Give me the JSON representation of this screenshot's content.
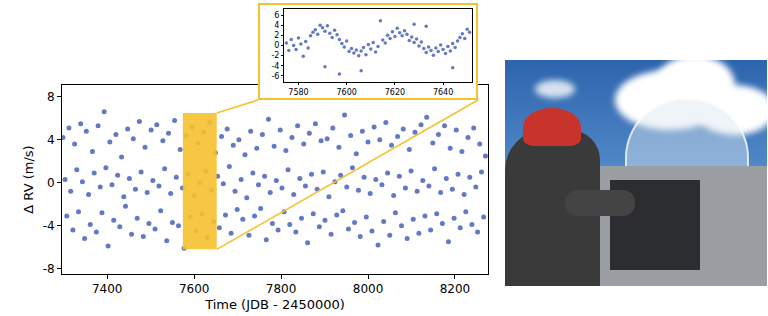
{
  "chart_data": [
    {
      "type": "scatter",
      "xlabel": "Time (JDB - 2450000)",
      "ylabel": "Δ RV (m/s)",
      "color": "#6479c6",
      "marker": "circle",
      "grid": false,
      "xlim": [
        7296,
        8276
      ],
      "ylim": [
        -8.5,
        9.1
      ],
      "xticks": [
        7400,
        7600,
        7800,
        8000,
        8200
      ],
      "yticks": [
        -8,
        -4,
        0,
        4,
        8
      ],
      "highlight": {
        "x": [
          7574,
          7652
        ],
        "y": [
          -6.2,
          6.5
        ],
        "color": "#f5c12e"
      },
      "x": [
        7298,
        7303,
        7307,
        7312,
        7316,
        7321,
        7325,
        7330,
        7334,
        7339,
        7343,
        7348,
        7352,
        7357,
        7361,
        7366,
        7370,
        7375,
        7379,
        7384,
        7388,
        7393,
        7397,
        7402,
        7406,
        7411,
        7415,
        7420,
        7424,
        7429,
        7433,
        7438,
        7442,
        7447,
        7451,
        7456,
        7460,
        7465,
        7469,
        7474,
        7478,
        7483,
        7487,
        7492,
        7496,
        7501,
        7505,
        7510,
        7514,
        7519,
        7523,
        7528,
        7532,
        7537,
        7541,
        7546,
        7550,
        7555,
        7559,
        7564,
        7568,
        7573,
        7577,
        7582,
        7586,
        7591,
        7595,
        7600,
        7604,
        7609,
        7613,
        7618,
        7622,
        7627,
        7631,
        7636,
        7640,
        7645,
        7649,
        7654,
        7658,
        7663,
        7667,
        7672,
        7676,
        7681,
        7685,
        7690,
        7694,
        7699,
        7703,
        7708,
        7712,
        7717,
        7721,
        7726,
        7730,
        7735,
        7739,
        7744,
        7748,
        7753,
        7757,
        7762,
        7766,
        7771,
        7775,
        7780,
        7784,
        7789,
        7793,
        7798,
        7802,
        7807,
        7811,
        7816,
        7820,
        7825,
        7829,
        7834,
        7838,
        7843,
        7847,
        7852,
        7856,
        7861,
        7865,
        7870,
        7874,
        7879,
        7883,
        7888,
        7892,
        7897,
        7901,
        7906,
        7910,
        7915,
        7919,
        7924,
        7928,
        7933,
        7937,
        7942,
        7946,
        7951,
        7955,
        7960,
        7964,
        7969,
        7973,
        7978,
        7982,
        7987,
        7991,
        7996,
        8000,
        8005,
        8009,
        8014,
        8018,
        8023,
        8027,
        8032,
        8036,
        8041,
        8045,
        8050,
        8054,
        8059,
        8063,
        8068,
        8072,
        8077,
        8081,
        8086,
        8090,
        8095,
        8099,
        8104,
        8108,
        8113,
        8117,
        8122,
        8126,
        8131,
        8135,
        8140,
        8144,
        8149,
        8153,
        8158,
        8162,
        8167,
        8171,
        8176,
        8180,
        8185,
        8189,
        8194,
        8198,
        8203,
        8207,
        8212,
        8216,
        8221,
        8225,
        8230,
        8234,
        8239,
        8243,
        8248,
        8252,
        8257,
        8261,
        8266,
        8270
      ],
      "values": [
        4.2,
        0.3,
        -3.1,
        5.1,
        -0.8,
        -4.4,
        3.6,
        1.2,
        -2.7,
        5.5,
        0.1,
        -5.2,
        4.8,
        -1.1,
        -3.9,
        2.9,
        0.9,
        -4.6,
        5.3,
        -0.4,
        -2.8,
        6.6,
        1.4,
        -5.9,
        3.8,
        -0.2,
        -3.5,
        4.5,
        0.7,
        -4.1,
        2.4,
        -1.3,
        -2.2,
        5.0,
        0.4,
        -4.8,
        4.1,
        -0.6,
        -3.3,
        5.7,
        1.0,
        -5.0,
        3.3,
        -0.9,
        -3.8,
        4.9,
        0.2,
        -4.3,
        5.4,
        -0.3,
        -2.6,
        3.9,
        1.3,
        -5.4,
        4.6,
        -1.0,
        -3.7,
        5.8,
        0.5,
        -4.0,
        3.1,
        -0.5,
        -6.1,
        4.4,
        0.8,
        -3.2,
        5.2,
        -1.2,
        -4.5,
        3.7,
        0.0,
        -2.9,
        4.7,
        1.1,
        -5.1,
        5.6,
        -0.7,
        -3.6,
        2.8,
        0.6,
        -4.2,
        4.3,
        -0.1,
        -3.0,
        5.0,
        1.5,
        -4.7,
        3.5,
        -0.8,
        -2.5,
        4.0,
        0.3,
        -3.4,
        2.6,
        -1.4,
        -4.9,
        4.8,
        0.9,
        -3.1,
        3.2,
        -0.2,
        -2.4,
        4.5,
        0.6,
        -5.3,
        5.9,
        -0.9,
        -3.8,
        3.4,
        0.2,
        -4.4,
        4.9,
        -0.5,
        -2.7,
        3.0,
        1.2,
        -3.9,
        4.2,
        -1.1,
        -4.6,
        5.3,
        0.4,
        -3.3,
        3.6,
        -0.3,
        -5.6,
        4.6,
        0.8,
        -2.9,
        5.5,
        -0.6,
        -4.1,
        3.9,
        1.0,
        -3.5,
        4.1,
        -1.3,
        -4.8,
        5.1,
        0.1,
        -3.0,
        3.3,
        0.7,
        -2.6,
        6.3,
        -0.4,
        -4.3,
        4.4,
        1.4,
        -3.7,
        2.7,
        -0.7,
        -5.0,
        4.8,
        0.5,
        -3.2,
        3.8,
        -1.0,
        -4.5,
        5.2,
        0.3,
        -5.8,
        4.0,
        -0.2,
        -3.6,
        5.6,
        0.9,
        -4.9,
        3.5,
        -1.2,
        -2.8,
        4.3,
        0.6,
        -4.0,
        5.0,
        -0.5,
        -5.2,
        3.1,
        1.1,
        -3.4,
        4.7,
        -0.8,
        -4.7,
        5.4,
        0.2,
        -3.1,
        6.1,
        -0.3,
        -4.4,
        3.7,
        1.3,
        -2.9,
        4.5,
        -0.9,
        -3.8,
        5.3,
        0.4,
        -5.5,
        3.2,
        -0.6,
        -3.3,
        4.9,
        0.8,
        -4.2,
        2.9,
        -1.1,
        -2.7,
        4.2,
        0.5,
        -3.9,
        5.1,
        -0.4,
        -4.6,
        3.6,
        1.0,
        -3.2,
        2.5
      ]
    },
    {
      "type": "scatter",
      "color": "#6479c6",
      "marker": "circle",
      "grid": false,
      "xlim": [
        7574,
        7652
      ],
      "ylim": [
        -7.2,
        7.2
      ],
      "xticks": [
        7580,
        7600,
        7620,
        7640
      ],
      "yticks": [
        -6,
        -4,
        -2,
        0,
        2,
        4,
        6
      ],
      "x": [
        7575,
        7576,
        7577,
        7578,
        7579,
        7580,
        7581,
        7582,
        7583,
        7584,
        7585,
        7586,
        7587,
        7588,
        7589,
        7590,
        7591,
        7592,
        7593,
        7594,
        7595,
        7596,
        7597,
        7598,
        7599,
        7600,
        7601,
        7602,
        7603,
        7604,
        7605,
        7606,
        7607,
        7608,
        7609,
        7610,
        7611,
        7612,
        7613,
        7614,
        7615,
        7616,
        7617,
        7618,
        7619,
        7620,
        7621,
        7622,
        7623,
        7624,
        7625,
        7626,
        7627,
        7628,
        7629,
        7630,
        7631,
        7632,
        7633,
        7634,
        7635,
        7636,
        7637,
        7638,
        7639,
        7640,
        7641,
        7642,
        7643,
        7644,
        7645,
        7646,
        7647,
        7648,
        7649,
        7650,
        7651,
        7591,
        7606,
        7628,
        7644,
        7633,
        7597
      ],
      "values": [
        0.5,
        -1.0,
        1.2,
        0.0,
        -0.8,
        1.5,
        0.3,
        -2.1,
        0.8,
        -0.5,
        1.9,
        2.6,
        3.1,
        2.2,
        4.0,
        3.5,
        2.8,
        3.9,
        2.4,
        1.6,
        3.0,
        2.1,
        1.2,
        0.4,
        -0.3,
        0.9,
        -1.2,
        -0.6,
        -1.5,
        -0.9,
        -2.0,
        -1.1,
        -0.4,
        -1.8,
        0.2,
        -0.7,
        0.6,
        -1.3,
        -0.2,
        4.9,
        1.1,
        0.5,
        2.0,
        1.4,
        2.7,
        1.8,
        3.4,
        2.5,
        1.9,
        2.9,
        2.2,
        1.0,
        1.7,
        0.6,
        1.3,
        -0.1,
        0.7,
        -0.6,
        -1.4,
        -0.3,
        -1.0,
        -1.9,
        -0.5,
        -1.2,
        0.1,
        -0.8,
        -1.6,
        -0.2,
        -1.1,
        0.4,
        -0.4,
        0.9,
        1.6,
        2.3,
        1.4,
        3.2,
        2.6,
        -4.2,
        -5.0,
        4.2,
        -4.4,
        3.8,
        -5.6
      ]
    }
  ]
}
